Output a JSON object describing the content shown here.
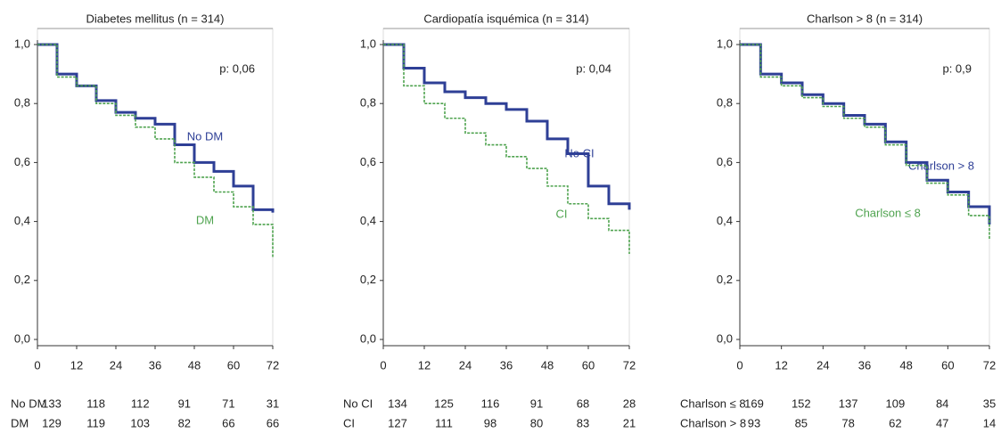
{
  "chart_data": [
    {
      "type": "line",
      "title": "Diabetes mellitus (n = 314)",
      "annotation": "p: 0,06",
      "x": [
        0,
        6,
        12,
        18,
        24,
        30,
        36,
        42,
        48,
        54,
        60,
        66,
        72
      ],
      "series": [
        {
          "name": "No DM",
          "color": "#2e3f96",
          "values": [
            1.0,
            0.9,
            0.86,
            0.81,
            0.77,
            0.75,
            0.73,
            0.66,
            0.6,
            0.57,
            0.52,
            0.44,
            0.43
          ]
        },
        {
          "name": "DM",
          "color": "#4fa34f",
          "values": [
            1.0,
            0.89,
            0.86,
            0.8,
            0.76,
            0.72,
            0.68,
            0.6,
            0.55,
            0.5,
            0.45,
            0.39,
            0.28
          ]
        }
      ],
      "xlim": [
        0,
        72
      ],
      "xticks": [
        0,
        12,
        24,
        36,
        48,
        60,
        72
      ],
      "ylim": [
        0,
        1
      ],
      "yticks": [
        {
          "value": 0,
          "label": "0,0"
        },
        {
          "value": 0.2,
          "label": "0,2"
        },
        {
          "value": 0.4,
          "label": "0,4"
        },
        {
          "value": 0.6,
          "label": "0,6"
        },
        {
          "value": 0.8,
          "label": "0,8"
        },
        {
          "value": 1,
          "label": "1,0"
        }
      ],
      "at_risk": [
        {
          "label": "No DM",
          "values": [
            133,
            118,
            112,
            91,
            71,
            31
          ]
        },
        {
          "label": "DM",
          "values": [
            129,
            119,
            103,
            82,
            66,
            66
          ]
        }
      ]
    },
    {
      "type": "line",
      "title": "Cardiopatía isquémica (n = 314)",
      "annotation": "p: 0,04",
      "x": [
        0,
        6,
        12,
        18,
        24,
        30,
        36,
        42,
        48,
        54,
        60,
        66,
        72
      ],
      "series": [
        {
          "name": "No CI",
          "color": "#2e3f96",
          "values": [
            1.0,
            0.92,
            0.87,
            0.84,
            0.82,
            0.8,
            0.78,
            0.74,
            0.68,
            0.63,
            0.52,
            0.46,
            0.44
          ]
        },
        {
          "name": "CI",
          "color": "#4fa34f",
          "values": [
            1.0,
            0.86,
            0.8,
            0.75,
            0.7,
            0.66,
            0.62,
            0.58,
            0.52,
            0.46,
            0.41,
            0.37,
            0.29
          ]
        }
      ],
      "xlim": [
        0,
        72
      ],
      "xticks": [
        0,
        12,
        24,
        36,
        48,
        60,
        72
      ],
      "ylim": [
        0,
        1
      ],
      "yticks": [
        {
          "value": 0,
          "label": "0,0"
        },
        {
          "value": 0.2,
          "label": "0,2"
        },
        {
          "value": 0.4,
          "label": "0,4"
        },
        {
          "value": 0.6,
          "label": "0,6"
        },
        {
          "value": 0.8,
          "label": "0,8"
        },
        {
          "value": 1,
          "label": "1,0"
        }
      ],
      "at_risk": [
        {
          "label": "No CI",
          "values": [
            134,
            125,
            116,
            91,
            68,
            28
          ]
        },
        {
          "label": "CI",
          "values": [
            127,
            111,
            98,
            80,
            83,
            21
          ]
        }
      ]
    },
    {
      "type": "line",
      "title": "Charlson > 8 (n = 314)",
      "annotation": "p: 0,9",
      "x": [
        0,
        6,
        12,
        18,
        24,
        30,
        36,
        42,
        48,
        54,
        60,
        66,
        72
      ],
      "series": [
        {
          "name": "Charlson > 8",
          "color": "#2e3f96",
          "values": [
            1.0,
            0.9,
            0.87,
            0.83,
            0.8,
            0.76,
            0.73,
            0.67,
            0.6,
            0.54,
            0.5,
            0.45,
            0.39
          ]
        },
        {
          "name": "Charlson ≤ 8",
          "color": "#4fa34f",
          "values": [
            1.0,
            0.89,
            0.86,
            0.82,
            0.79,
            0.75,
            0.72,
            0.66,
            0.59,
            0.53,
            0.49,
            0.42,
            0.34
          ]
        }
      ],
      "xlim": [
        0,
        72
      ],
      "xticks": [
        0,
        12,
        24,
        36,
        48,
        60,
        72
      ],
      "ylim": [
        0,
        1
      ],
      "yticks": [
        {
          "value": 0,
          "label": "0,0"
        },
        {
          "value": 0.2,
          "label": "0,2"
        },
        {
          "value": 0.4,
          "label": "0,4"
        },
        {
          "value": 0.6,
          "label": "0,6"
        },
        {
          "value": 0.8,
          "label": "0,8"
        },
        {
          "value": 1,
          "label": "1,0"
        }
      ],
      "at_risk": [
        {
          "label": "Charlson ≤ 8",
          "values": [
            169,
            152,
            137,
            109,
            84,
            35
          ]
        },
        {
          "label": "Charlson > 8",
          "values": [
            93,
            85,
            78,
            62,
            47,
            14
          ]
        }
      ]
    }
  ]
}
